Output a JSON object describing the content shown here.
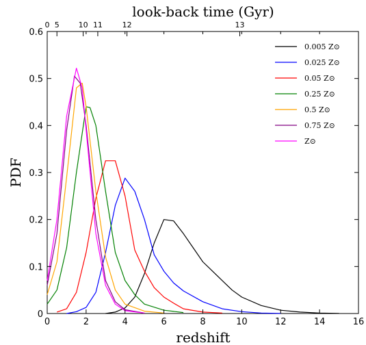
{
  "chart_data": {
    "type": "line",
    "xlabel": "redshift",
    "ylabel": "PDF",
    "top_xlabel": "look-back time (Gyr)",
    "xlim": [
      0,
      16
    ],
    "ylim": [
      0,
      0.6
    ],
    "x_ticks": [
      "0",
      "2",
      "4",
      "6",
      "8",
      "10",
      "12",
      "14",
      "16"
    ],
    "x_tick_values": [
      0,
      2,
      4,
      6,
      8,
      10,
      12,
      14,
      16
    ],
    "y_ticks": [
      "0",
      "0.1",
      "0.2",
      "0.3",
      "0.4",
      "0.5",
      "0.6"
    ],
    "y_tick_values": [
      0,
      0.1,
      0.2,
      0.3,
      0.4,
      0.5,
      0.6
    ],
    "top_ticks": [
      {
        "label": "0",
        "z": 0
      },
      {
        "label": "5",
        "z": 0.5
      },
      {
        "label": "10",
        "z": 1.85
      },
      {
        "label": "11",
        "z": 2.6
      },
      {
        "label": "12",
        "z": 4.1
      },
      {
        "label": "13",
        "z": 9.9
      }
    ],
    "legend_position": "top-right",
    "series": [
      {
        "name": "0.005 Z⊙",
        "color": "#000000",
        "points": [
          [
            3.0,
            0
          ],
          [
            3.5,
            0.003
          ],
          [
            4.0,
            0.012
          ],
          [
            4.5,
            0.035
          ],
          [
            5.0,
            0.085
          ],
          [
            5.5,
            0.15
          ],
          [
            6.0,
            0.2
          ],
          [
            6.5,
            0.197
          ],
          [
            7.0,
            0.17
          ],
          [
            7.5,
            0.14
          ],
          [
            8.0,
            0.11
          ],
          [
            8.5,
            0.09
          ],
          [
            9.0,
            0.07
          ],
          [
            9.5,
            0.05
          ],
          [
            10.0,
            0.035
          ],
          [
            11.0,
            0.017
          ],
          [
            12.0,
            0.007
          ],
          [
            13.0,
            0.003
          ],
          [
            14.0,
            0.001
          ],
          [
            15.0,
            0.0003
          ]
        ]
      },
      {
        "name": "0.025 Z⊙",
        "color": "#0000ff",
        "points": [
          [
            1.0,
            0
          ],
          [
            1.5,
            0.004
          ],
          [
            2.0,
            0.013
          ],
          [
            2.5,
            0.045
          ],
          [
            3.0,
            0.13
          ],
          [
            3.5,
            0.23
          ],
          [
            4.0,
            0.288
          ],
          [
            4.5,
            0.26
          ],
          [
            5.0,
            0.2
          ],
          [
            5.5,
            0.125
          ],
          [
            6.0,
            0.09
          ],
          [
            6.5,
            0.065
          ],
          [
            7.0,
            0.048
          ],
          [
            8.0,
            0.025
          ],
          [
            9.0,
            0.01
          ],
          [
            10.0,
            0.004
          ],
          [
            11.0,
            0.001
          ],
          [
            12.0,
            0.0003
          ]
        ]
      },
      {
        "name": "0.05 Z⊙",
        "color": "#ff0000",
        "points": [
          [
            0.5,
            0.003
          ],
          [
            1.0,
            0.01
          ],
          [
            1.5,
            0.045
          ],
          [
            2.0,
            0.13
          ],
          [
            2.5,
            0.245
          ],
          [
            3.0,
            0.325
          ],
          [
            3.5,
            0.325
          ],
          [
            4.0,
            0.25
          ],
          [
            4.5,
            0.135
          ],
          [
            5.0,
            0.09
          ],
          [
            5.5,
            0.055
          ],
          [
            6.0,
            0.035
          ],
          [
            6.5,
            0.022
          ],
          [
            7.0,
            0.01
          ],
          [
            8.0,
            0.003
          ],
          [
            9.0,
            0.001
          ]
        ]
      },
      {
        "name": "0.25 Z⊙",
        "color": "#008000",
        "points": [
          [
            0,
            0.02
          ],
          [
            0.5,
            0.05
          ],
          [
            1.0,
            0.14
          ],
          [
            1.5,
            0.3
          ],
          [
            2.0,
            0.44
          ],
          [
            2.2,
            0.438
          ],
          [
            2.5,
            0.4
          ],
          [
            3.0,
            0.26
          ],
          [
            3.5,
            0.13
          ],
          [
            4.0,
            0.07
          ],
          [
            4.5,
            0.04
          ],
          [
            5.0,
            0.02
          ],
          [
            6.0,
            0.007
          ],
          [
            7.0,
            0.002
          ]
        ]
      },
      {
        "name": "0.5 Z⊙",
        "color": "#ffa500",
        "points": [
          [
            0,
            0.04
          ],
          [
            0.5,
            0.11
          ],
          [
            1.0,
            0.29
          ],
          [
            1.5,
            0.48
          ],
          [
            1.8,
            0.49
          ],
          [
            2.0,
            0.44
          ],
          [
            2.5,
            0.26
          ],
          [
            3.0,
            0.12
          ],
          [
            3.5,
            0.05
          ],
          [
            4.0,
            0.02
          ],
          [
            5.0,
            0.005
          ],
          [
            6.0,
            0.001
          ]
        ]
      },
      {
        "name": "0.75 Z⊙",
        "color": "#800080",
        "points": [
          [
            0,
            0.06
          ],
          [
            0.5,
            0.17
          ],
          [
            1.0,
            0.39
          ],
          [
            1.4,
            0.505
          ],
          [
            1.7,
            0.49
          ],
          [
            2.0,
            0.4
          ],
          [
            2.5,
            0.2
          ],
          [
            3.0,
            0.07
          ],
          [
            3.5,
            0.025
          ],
          [
            4.0,
            0.008
          ],
          [
            5.0,
            0.001
          ]
        ]
      },
      {
        "name": "Z⊙",
        "color": "#ff00ff",
        "points": [
          [
            0,
            0.07
          ],
          [
            0.5,
            0.2
          ],
          [
            1.0,
            0.42
          ],
          [
            1.5,
            0.522
          ],
          [
            1.8,
            0.48
          ],
          [
            2.0,
            0.39
          ],
          [
            2.5,
            0.17
          ],
          [
            3.0,
            0.06
          ],
          [
            3.5,
            0.02
          ],
          [
            4.0,
            0.006
          ],
          [
            5.0,
            0.001
          ]
        ]
      }
    ]
  }
}
